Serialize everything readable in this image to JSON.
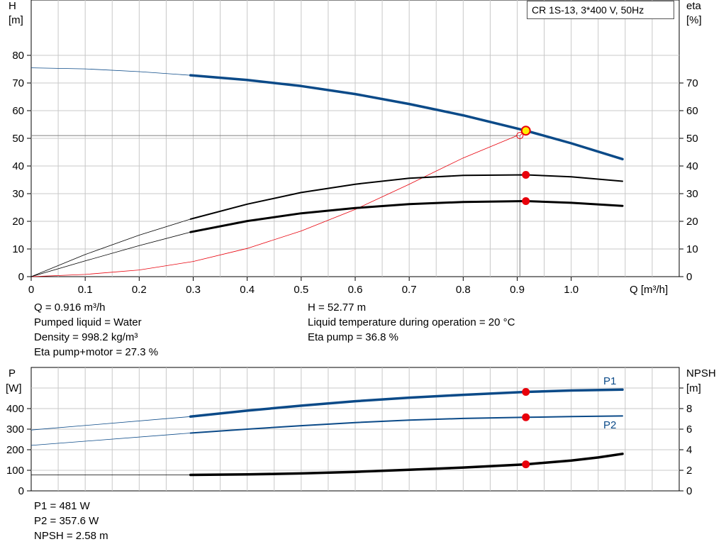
{
  "legend_box": {
    "text": "CR 1S-13, 3*400 V, 50Hz"
  },
  "info_top_left": [
    "Q = 0.916 m³/h",
    "Pumped liquid = Water",
    "Density = 998.2 kg/m³",
    "Eta pump+motor = 27.3 %"
  ],
  "info_top_right": [
    "H = 52.77 m",
    "Liquid temperature during operation = 20 °C",
    "Eta pump = 36.8 %"
  ],
  "info_bottom": [
    "P1 = 481 W",
    "P2 = 357.6 W",
    "NPSH = 2.58 m"
  ],
  "colors": {
    "blue": "#0b4a88",
    "red": "#e8000b",
    "yellow": "#ffee00",
    "grid": "#c8c8c8",
    "black": "#000000"
  },
  "chart_data": [
    {
      "type": "line",
      "name": "head-efficiency",
      "x_label": "Q [m³/h]",
      "y_left_label": [
        "H",
        "[m]"
      ],
      "y_right_label": [
        "eta",
        "[%]"
      ],
      "x_range": [
        0,
        1.2
      ],
      "y_left_range": [
        0,
        87
      ],
      "y_right_range": [
        0,
        87
      ],
      "x_ticks": [
        "0",
        "0.1",
        "0.2",
        "0.3",
        "0.4",
        "0.5",
        "0.6",
        "0.7",
        "0.8",
        "0.9",
        "1.0"
      ],
      "y_left_ticks": [
        "0",
        "10",
        "20",
        "30",
        "40",
        "50",
        "60",
        "70",
        "80"
      ],
      "y_right_ticks": [
        "0",
        "10",
        "20",
        "30",
        "40",
        "50",
        "60",
        "70"
      ],
      "series": [
        {
          "key": "H",
          "axis": "left",
          "x": [
            0,
            0.1,
            0.2,
            0.295,
            0.4,
            0.5,
            0.6,
            0.7,
            0.8,
            0.916,
            1.0,
            1.095
          ],
          "y": [
            75.5,
            75.1,
            74.1,
            72.8,
            71.1,
            68.9,
            66.0,
            62.4,
            58.3,
            52.77,
            48.2,
            42.5
          ]
        },
        {
          "key": "eta_pump",
          "axis": "right",
          "x": [
            0,
            0.1,
            0.2,
            0.295,
            0.4,
            0.5,
            0.6,
            0.7,
            0.8,
            0.916,
            1.0,
            1.095
          ],
          "y": [
            0,
            8.0,
            15.0,
            20.8,
            26.2,
            30.4,
            33.4,
            35.6,
            36.6,
            36.8,
            36.1,
            34.5
          ]
        },
        {
          "key": "eta_total",
          "axis": "right",
          "x": [
            0,
            0.1,
            0.2,
            0.295,
            0.4,
            0.5,
            0.6,
            0.7,
            0.8,
            0.916,
            1.0,
            1.095
          ],
          "y": [
            0,
            5.7,
            11.2,
            16.1,
            20.1,
            22.9,
            24.8,
            26.2,
            27.0,
            27.3,
            26.7,
            25.6
          ]
        },
        {
          "key": "npsh_req_thin",
          "axis": "left",
          "x": [
            0,
            0.1,
            0.2,
            0.3,
            0.4,
            0.5,
            0.6,
            0.7,
            0.8,
            0.9
          ],
          "y": [
            0,
            0.8,
            2.4,
            5.5,
            10.2,
            16.5,
            24.3,
            33.4,
            42.9,
            51.0
          ]
        }
      ],
      "duty_point": {
        "q": 0.916,
        "h": 52.77,
        "h_line": 51.0,
        "eta_pump": 36.8,
        "eta_total": 27.3
      }
    },
    {
      "type": "line",
      "name": "power-npsh",
      "x_range": [
        0,
        1.2
      ],
      "y_left_label": [
        "P",
        "[W]"
      ],
      "y_right_label": [
        "NPSH",
        "[m]"
      ],
      "y_left_range": [
        0,
        600
      ],
      "y_right_range": [
        0,
        10
      ],
      "y_left_ticks": [
        "0",
        "100",
        "200",
        "300",
        "400"
      ],
      "y_right_ticks": [
        "0",
        "2",
        "4",
        "6",
        "8"
      ],
      "y_right_unit_tick": "[m]",
      "series": [
        {
          "key": "P1",
          "name": "P1",
          "axis": "left",
          "x": [
            0,
            0.295,
            0.4,
            0.5,
            0.6,
            0.7,
            0.8,
            0.916,
            1.0,
            1.095
          ],
          "y": [
            296,
            361,
            390,
            414,
            436,
            453,
            467,
            481,
            488,
            492
          ]
        },
        {
          "key": "P2",
          "name": "P2",
          "axis": "left",
          "x": [
            0,
            0.295,
            0.4,
            0.5,
            0.6,
            0.7,
            0.8,
            0.916,
            1.0,
            1.095
          ],
          "y": [
            221,
            281,
            300,
            317,
            332,
            344,
            352,
            357.6,
            361,
            364
          ]
        },
        {
          "key": "NPSH",
          "axis": "right",
          "x": [
            0,
            0.295,
            0.4,
            0.5,
            0.6,
            0.7,
            0.8,
            0.916,
            1.0,
            1.05,
            1.095
          ],
          "y": [
            1.55,
            1.55,
            1.6,
            1.7,
            1.85,
            2.05,
            2.27,
            2.58,
            2.95,
            3.25,
            3.6
          ]
        }
      ],
      "duty_point": {
        "q": 0.916,
        "p1": 481,
        "p2": 357.6,
        "npsh": 2.58
      }
    }
  ]
}
